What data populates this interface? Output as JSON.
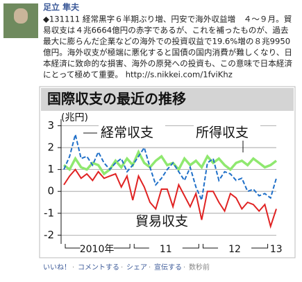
{
  "post": {
    "author": "足立 隼夫",
    "lines": [
      "◆131111 経常黒字６半期ぶり増、円安で海外収益増　４～９月。貿",
      "易収支は４兆6664億円の赤字であるが、これを補ったものが、過去",
      "最大に膨らんだ企業などの海外での投資収益で19.6%増の８兆9950",
      "億円。海外収支が極端に悪化すると国債の国内消費が難しくなり、日",
      "本経済に致命的な損害、海外の原発への投資も、この意味で日本経済",
      "にとって極めて重要。 http://s.nikkei.com/1fviKhz"
    ],
    "actions": [
      "いいね！",
      "コメントする",
      "シェア",
      "宣伝する",
      "数秒前"
    ]
  },
  "chart": {
    "type": "line",
    "title": "国際収支の最近の推移",
    "y_unit": "(兆円)",
    "x_labels": [
      "2010年",
      "11",
      "12",
      "13"
    ],
    "ylim": [
      -2.4,
      3.3
    ],
    "yticks": [
      -2,
      -1,
      0,
      1,
      2,
      3
    ],
    "grid": true,
    "series": [
      {
        "name": "所得収支",
        "color": "#8fe86f",
        "dash": false,
        "values": [
          1.2,
          1.0,
          1.5,
          1.1,
          1.0,
          1.3,
          1.2,
          0.8,
          1.0,
          1.4,
          1.1,
          1.5,
          1.2,
          1.8,
          1.3,
          1.1,
          1.4,
          1.6,
          1.2,
          1.3,
          1.0,
          1.5,
          1.2,
          1.4,
          1.1,
          1.6,
          1.3,
          1.5,
          1.2,
          1.0,
          1.3,
          1.4,
          1.2,
          1.5,
          1.3,
          1.1,
          1.2,
          1.4
        ]
      },
      {
        "name": "経常収支",
        "color": "#1f6fc8",
        "dash": true,
        "values": [
          1.0,
          1.6,
          2.6,
          1.5,
          1.6,
          1.2,
          1.8,
          1.3,
          1.0,
          1.3,
          1.5,
          0.9,
          1.2,
          1.6,
          2.0,
          1.1,
          0.3,
          0.6,
          1.0,
          1.3,
          0.9,
          0.5,
          1.1,
          0.2,
          -0.4,
          1.3,
          1.5,
          0.5,
          0.9,
          0.8,
          0.5,
          0.6,
          0.0,
          0.1,
          -0.2,
          -0.1,
          -0.3,
          0.6
        ]
      },
      {
        "name": "貿易収支",
        "color": "#e02222",
        "dash": false,
        "values": [
          0.3,
          0.7,
          1.0,
          0.6,
          0.8,
          0.5,
          0.9,
          0.6,
          0.7,
          0.8,
          0.2,
          0.7,
          -0.4,
          0.7,
          0.2,
          -0.5,
          -0.8,
          0.1,
          0.1,
          -0.7,
          0.3,
          -0.2,
          -0.7,
          -0.1,
          -1.3,
          0.0,
          0.0,
          -0.5,
          -0.9,
          -0.1,
          -0.3,
          -0.8,
          -0.5,
          -0.6,
          -0.9,
          -0.6,
          -1.6,
          -0.8
        ]
      }
    ]
  }
}
